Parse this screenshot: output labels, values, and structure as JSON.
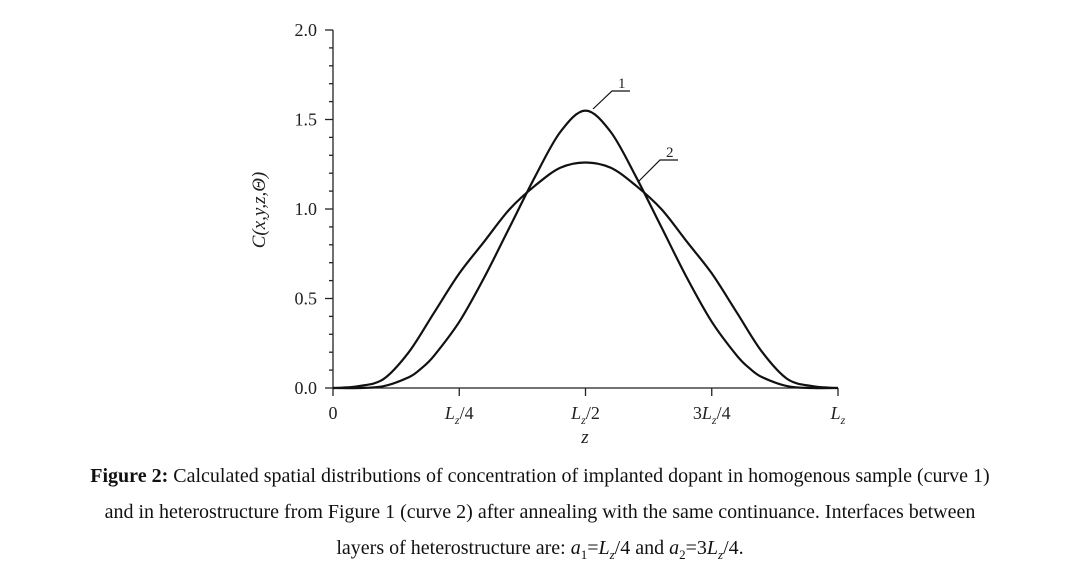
{
  "chart_data": {
    "type": "line",
    "title": "",
    "xlabel": "z",
    "ylabel": "C(x,y,z,Θ)",
    "xlim": [
      0,
      1
    ],
    "ylim": [
      0,
      2.0
    ],
    "x_ticks": [
      {
        "value": 0,
        "label": "0"
      },
      {
        "value": 0.25,
        "label": "L_z/4"
      },
      {
        "value": 0.5,
        "label": "L_z/2"
      },
      {
        "value": 0.75,
        "label": "3L_z/4"
      },
      {
        "value": 1.0,
        "label": "L_z"
      }
    ],
    "y_ticks": [
      {
        "value": 0.0,
        "label": "0.0"
      },
      {
        "value": 0.5,
        "label": "0.5"
      },
      {
        "value": 1.0,
        "label": "1.0"
      },
      {
        "value": 1.5,
        "label": "1.5"
      },
      {
        "value": 2.0,
        "label": "2.0"
      }
    ],
    "series": [
      {
        "name": "1",
        "x": [
          0,
          0.05,
          0.1,
          0.15,
          0.175,
          0.2,
          0.25,
          0.3,
          0.35,
          0.4,
          0.45,
          0.5,
          0.55,
          0.6,
          0.65,
          0.7,
          0.75,
          0.8,
          0.825,
          0.85,
          0.9,
          0.95,
          1.0
        ],
        "values": [
          0.0,
          0.0,
          0.01,
          0.06,
          0.11,
          0.18,
          0.37,
          0.62,
          0.9,
          1.18,
          1.43,
          1.55,
          1.43,
          1.18,
          0.9,
          0.62,
          0.37,
          0.18,
          0.11,
          0.06,
          0.01,
          0.0,
          0.0
        ]
      },
      {
        "name": "2",
        "x": [
          0,
          0.05,
          0.1,
          0.15,
          0.2,
          0.25,
          0.3,
          0.35,
          0.4,
          0.45,
          0.5,
          0.55,
          0.6,
          0.65,
          0.7,
          0.75,
          0.8,
          0.85,
          0.9,
          0.95,
          1.0
        ],
        "values": [
          0.0,
          0.01,
          0.05,
          0.2,
          0.42,
          0.64,
          0.82,
          1.0,
          1.13,
          1.23,
          1.26,
          1.23,
          1.13,
          1.0,
          0.82,
          0.64,
          0.42,
          0.2,
          0.05,
          0.01,
          0.0
        ]
      }
    ],
    "annotations": [
      {
        "text": "1",
        "series": "1"
      },
      {
        "text": "2",
        "series": "2"
      }
    ]
  },
  "caption": {
    "label": "Figure 2:",
    "text_line1": " Calculated spatial distributions of concentration of implanted dopant in homogenous sample (curve 1)",
    "text_line2": "and in heterostructure from Figure 1 (curve 2) after annealing with the same continuance. Interfaces between",
    "text_line3_prefix": "layers of heterostructure are: ",
    "a1": "a",
    "a1_sub": "1",
    "eq1": "=",
    "L1": "L",
    "L1_sub": "z",
    "frac1": "/4 and ",
    "a2": "a",
    "a2_sub": "2",
    "eq2": "=3",
    "L2": "L",
    "L2_sub": "z",
    "frac2": "/4."
  }
}
